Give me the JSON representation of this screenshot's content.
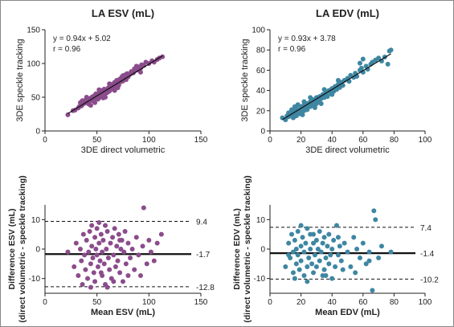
{
  "colors": {
    "esv": "#8B4C8C",
    "edv": "#3E86A2",
    "axis": "#222222",
    "line": "#111111"
  },
  "chart_data": [
    {
      "id": "esv_scatter",
      "type": "scatter",
      "title": "LA ESV (mL)",
      "xlabel": "3DE direct volumetric",
      "ylabel": "3DE speckle tracking",
      "xlim": [
        0,
        150
      ],
      "ylim": [
        0,
        150
      ],
      "xticks": [
        "0",
        "50",
        "100",
        "150"
      ],
      "yticks": [
        "0",
        "50",
        "100",
        "150"
      ],
      "annotations": [
        "y = 0.94x + 5.02",
        "r = 0.96"
      ],
      "regression": {
        "slope": 0.94,
        "intercept": 5.02,
        "x_range": [
          22,
          113
        ]
      },
      "points": [
        [
          22,
          24
        ],
        [
          27,
          30
        ],
        [
          29,
          31
        ],
        [
          32,
          34
        ],
        [
          33,
          36
        ],
        [
          35,
          37
        ],
        [
          36,
          39
        ],
        [
          38,
          41
        ],
        [
          38,
          45
        ],
        [
          40,
          43
        ],
        [
          41,
          46
        ],
        [
          42,
          40
        ],
        [
          43,
          48
        ],
        [
          44,
          45
        ],
        [
          45,
          50
        ],
        [
          46,
          47
        ],
        [
          47,
          52
        ],
        [
          47,
          44
        ],
        [
          48,
          49
        ],
        [
          49,
          55
        ],
        [
          50,
          52
        ],
        [
          51,
          47
        ],
        [
          52,
          56
        ],
        [
          53,
          50
        ],
        [
          54,
          60
        ],
        [
          54,
          53
        ],
        [
          55,
          58
        ],
        [
          56,
          49
        ],
        [
          57,
          62
        ],
        [
          58,
          55
        ],
        [
          59,
          61
        ],
        [
          60,
          57
        ],
        [
          61,
          64
        ],
        [
          62,
          59
        ],
        [
          63,
          67
        ],
        [
          64,
          62
        ],
        [
          65,
          69
        ],
        [
          66,
          63
        ],
        [
          67,
          72
        ],
        [
          68,
          66
        ],
        [
          69,
          75
        ],
        [
          70,
          70
        ],
        [
          71,
          68
        ],
        [
          72,
          77
        ],
        [
          73,
          73
        ],
        [
          74,
          80
        ],
        [
          75,
          74
        ],
        [
          76,
          78
        ],
        [
          77,
          83
        ],
        [
          78,
          76
        ],
        [
          79,
          85
        ],
        [
          80,
          80
        ],
        [
          82,
          84
        ],
        [
          83,
          88
        ],
        [
          85,
          86
        ],
        [
          86,
          92
        ],
        [
          88,
          90
        ],
        [
          90,
          95
        ],
        [
          92,
          93
        ],
        [
          93,
          98
        ],
        [
          95,
          97
        ],
        [
          97,
          102
        ],
        [
          100,
          100
        ],
        [
          103,
          104
        ],
        [
          105,
          102
        ],
        [
          108,
          106
        ],
        [
          110,
          108
        ],
        [
          113,
          110
        ],
        [
          48,
          42
        ],
        [
          52,
          61
        ],
        [
          58,
          50
        ],
        [
          44,
          38
        ],
        [
          62,
          70
        ],
        [
          36,
          45
        ],
        [
          70,
          64
        ],
        [
          55,
          52
        ],
        [
          40,
          50
        ],
        [
          88,
          96
        ],
        [
          92,
          87
        ],
        [
          67,
          60
        ],
        [
          75,
          82
        ],
        [
          34,
          42
        ]
      ]
    },
    {
      "id": "edv_scatter",
      "type": "scatter",
      "title": "LA EDV (mL)",
      "xlabel": "3DE direct volumetric",
      "ylabel": "3DE speckle tracking",
      "xlim": [
        0,
        100
      ],
      "ylim": [
        0,
        100
      ],
      "xticks": [
        "0",
        "20",
        "40",
        "60",
        "80",
        "100"
      ],
      "yticks": [
        "0",
        "20",
        "40",
        "60",
        "80",
        "100"
      ],
      "annotations": [
        "y = 0.93x + 3.78",
        "r = 0.96"
      ],
      "regression": {
        "slope": 0.93,
        "intercept": 3.78,
        "x_range": [
          8,
          78
        ]
      },
      "points": [
        [
          8,
          13
        ],
        [
          10,
          11
        ],
        [
          11,
          15
        ],
        [
          12,
          14
        ],
        [
          13,
          18
        ],
        [
          14,
          16
        ],
        [
          15,
          20
        ],
        [
          15,
          13
        ],
        [
          16,
          17
        ],
        [
          17,
          22
        ],
        [
          17,
          15
        ],
        [
          18,
          19
        ],
        [
          19,
          21
        ],
        [
          19,
          17
        ],
        [
          20,
          24
        ],
        [
          20,
          18
        ],
        [
          21,
          22
        ],
        [
          22,
          26
        ],
        [
          22,
          20
        ],
        [
          23,
          23
        ],
        [
          24,
          27
        ],
        [
          24,
          21
        ],
        [
          25,
          25
        ],
        [
          26,
          29
        ],
        [
          26,
          24
        ],
        [
          27,
          27
        ],
        [
          28,
          31
        ],
        [
          28,
          25
        ],
        [
          29,
          28
        ],
        [
          30,
          33
        ],
        [
          30,
          27
        ],
        [
          31,
          30
        ],
        [
          32,
          34
        ],
        [
          32,
          29
        ],
        [
          33,
          32
        ],
        [
          34,
          36
        ],
        [
          35,
          33
        ],
        [
          36,
          38
        ],
        [
          36,
          35
        ],
        [
          37,
          34
        ],
        [
          38,
          40
        ],
        [
          39,
          37
        ],
        [
          40,
          42
        ],
        [
          41,
          39
        ],
        [
          42,
          44
        ],
        [
          43,
          41
        ],
        [
          44,
          46
        ],
        [
          45,
          43
        ],
        [
          46,
          48
        ],
        [
          47,
          45
        ],
        [
          48,
          50
        ],
        [
          50,
          52
        ],
        [
          51,
          49
        ],
        [
          52,
          55
        ],
        [
          54,
          53
        ],
        [
          55,
          57
        ],
        [
          56,
          54
        ],
        [
          58,
          60
        ],
        [
          59,
          62
        ],
        [
          60,
          58
        ],
        [
          62,
          64
        ],
        [
          63,
          61
        ],
        [
          65,
          66
        ],
        [
          66,
          68
        ],
        [
          68,
          70
        ],
        [
          70,
          72
        ],
        [
          72,
          69
        ],
        [
          74,
          73
        ],
        [
          76,
          66
        ],
        [
          77,
          79
        ],
        [
          78,
          80
        ],
        [
          18,
          26
        ],
        [
          22,
          29
        ],
        [
          14,
          21
        ],
        [
          26,
          33
        ],
        [
          29,
          23
        ],
        [
          35,
          41
        ],
        [
          21,
          16
        ],
        [
          40,
          36
        ],
        [
          16,
          24
        ],
        [
          12,
          18
        ],
        [
          44,
          50
        ],
        [
          33,
          27
        ],
        [
          58,
          67
        ],
        [
          60,
          71
        ]
      ]
    },
    {
      "id": "esv_bland_altman",
      "type": "scatter",
      "xlabel": "Mean ESV (mL)",
      "ylabel": "Difference ESV (mL)",
      "ylabel2": "(direct volumetric - speckle tracking)",
      "xlim": [
        0,
        150
      ],
      "ylim": [
        -15,
        15
      ],
      "xticks": [
        "0",
        "50",
        "100",
        "150"
      ],
      "yticks": [
        "-10",
        "0",
        "10"
      ],
      "reference_lines": [
        {
          "value": 9.4,
          "label": "9.4",
          "style": "dashed"
        },
        {
          "value": -1.7,
          "label": "-1.7",
          "style": "solid"
        },
        {
          "value": -12.8,
          "label": "-12.8",
          "style": "dashed"
        }
      ],
      "points": [
        [
          22,
          -1
        ],
        [
          28,
          -6
        ],
        [
          30,
          2
        ],
        [
          32,
          -9
        ],
        [
          34,
          0
        ],
        [
          35,
          -4
        ],
        [
          37,
          5
        ],
        [
          38,
          -2
        ],
        [
          39,
          -7
        ],
        [
          40,
          3
        ],
        [
          41,
          -10
        ],
        [
          42,
          -1
        ],
        [
          43,
          6
        ],
        [
          44,
          -5
        ],
        [
          45,
          1
        ],
        [
          45,
          8
        ],
        [
          46,
          -3
        ],
        [
          47,
          -8
        ],
        [
          48,
          4
        ],
        [
          48,
          -11
        ],
        [
          49,
          0
        ],
        [
          50,
          7
        ],
        [
          50,
          -2
        ],
        [
          51,
          -6
        ],
        [
          52,
          9
        ],
        [
          52,
          2
        ],
        [
          53,
          -4
        ],
        [
          54,
          5
        ],
        [
          55,
          -9
        ],
        [
          55,
          -1
        ],
        [
          56,
          3
        ],
        [
          57,
          -5
        ],
        [
          58,
          8
        ],
        [
          58,
          -12
        ],
        [
          59,
          0
        ],
        [
          60,
          6
        ],
        [
          61,
          -3
        ],
        [
          62,
          -7
        ],
        [
          63,
          2
        ],
        [
          64,
          -10
        ],
        [
          65,
          4
        ],
        [
          66,
          -2
        ],
        [
          67,
          7
        ],
        [
          68,
          -6
        ],
        [
          69,
          1
        ],
        [
          70,
          -4
        ],
        [
          71,
          5
        ],
        [
          72,
          -8
        ],
        [
          73,
          0
        ],
        [
          74,
          3
        ],
        [
          75,
          -11
        ],
        [
          76,
          -1
        ],
        [
          77,
          6
        ],
        [
          78,
          -5
        ],
        [
          80,
          2
        ],
        [
          82,
          -3
        ],
        [
          84,
          0
        ],
        [
          86,
          -7
        ],
        [
          88,
          4
        ],
        [
          90,
          -2
        ],
        [
          92,
          -9
        ],
        [
          94,
          1
        ],
        [
          95,
          14
        ],
        [
          98,
          -5
        ],
        [
          100,
          3
        ],
        [
          102,
          -1
        ],
        [
          105,
          -4
        ],
        [
          108,
          2
        ],
        [
          112,
          5
        ],
        [
          36,
          -12
        ],
        [
          44,
          -13
        ],
        [
          54,
          -8
        ],
        [
          60,
          -13
        ],
        [
          66,
          -11
        ],
        [
          72,
          3
        ],
        [
          80,
          -9
        ]
      ]
    },
    {
      "id": "edv_bland_altman",
      "type": "scatter",
      "xlabel": "Mean EDV (mL)",
      "ylabel": "Difference EDV (mL)",
      "ylabel2": "(direct volumetric - speckle tracking)",
      "xlim": [
        0,
        100
      ],
      "ylim": [
        -15,
        15
      ],
      "xticks": [
        "0",
        "20",
        "40",
        "60",
        "80",
        "100"
      ],
      "yticks": [
        "-10",
        "0",
        "10"
      ],
      "reference_lines": [
        {
          "value": 7.4,
          "label": "7.4",
          "style": "dashed"
        },
        {
          "value": -1.4,
          "label": "-1.4",
          "style": "solid"
        },
        {
          "value": -10.2,
          "label": "-10.2",
          "style": "dashed"
        }
      ],
      "points": [
        [
          10,
          -6
        ],
        [
          12,
          2
        ],
        [
          13,
          -3
        ],
        [
          14,
          5
        ],
        [
          15,
          -1
        ],
        [
          15,
          -8
        ],
        [
          16,
          3
        ],
        [
          17,
          -5
        ],
        [
          17,
          0
        ],
        [
          18,
          6
        ],
        [
          18,
          -2
        ],
        [
          19,
          -7
        ],
        [
          20,
          1
        ],
        [
          20,
          -4
        ],
        [
          21,
          4
        ],
        [
          22,
          -9
        ],
        [
          22,
          -1
        ],
        [
          23,
          2
        ],
        [
          24,
          -6
        ],
        [
          24,
          7
        ],
        [
          25,
          -3
        ],
        [
          26,
          0
        ],
        [
          26,
          5
        ],
        [
          27,
          -5
        ],
        [
          28,
          2
        ],
        [
          28,
          -8
        ],
        [
          29,
          -2
        ],
        [
          30,
          3
        ],
        [
          30,
          -6
        ],
        [
          31,
          0
        ],
        [
          32,
          6
        ],
        [
          32,
          -4
        ],
        [
          33,
          -1
        ],
        [
          34,
          2
        ],
        [
          35,
          -7
        ],
        [
          35,
          4
        ],
        [
          36,
          -3
        ],
        [
          37,
          1
        ],
        [
          38,
          -5
        ],
        [
          38,
          5
        ],
        [
          39,
          -2
        ],
        [
          40,
          0
        ],
        [
          41,
          3
        ],
        [
          42,
          -6
        ],
        [
          43,
          8
        ],
        [
          44,
          -2
        ],
        [
          45,
          1
        ],
        [
          46,
          -4
        ],
        [
          48,
          2
        ],
        [
          50,
          -1
        ],
        [
          52,
          -6
        ],
        [
          54,
          4
        ],
        [
          56,
          0
        ],
        [
          58,
          -3
        ],
        [
          60,
          2
        ],
        [
          62,
          -5
        ],
        [
          64,
          -4
        ],
        [
          66,
          -14
        ],
        [
          67,
          13
        ],
        [
          68,
          10
        ],
        [
          70,
          -3
        ],
        [
          72,
          1
        ],
        [
          78,
          -1
        ],
        [
          16,
          -10
        ],
        [
          24,
          -11
        ],
        [
          34,
          -9
        ],
        [
          40,
          -10
        ],
        [
          47,
          -7
        ],
        [
          55,
          -8
        ],
        [
          64,
          -1
        ],
        [
          12,
          -2
        ],
        [
          20,
          8
        ],
        [
          36,
          -9
        ],
        [
          28,
          5
        ],
        [
          44,
          4
        ]
      ]
    }
  ]
}
